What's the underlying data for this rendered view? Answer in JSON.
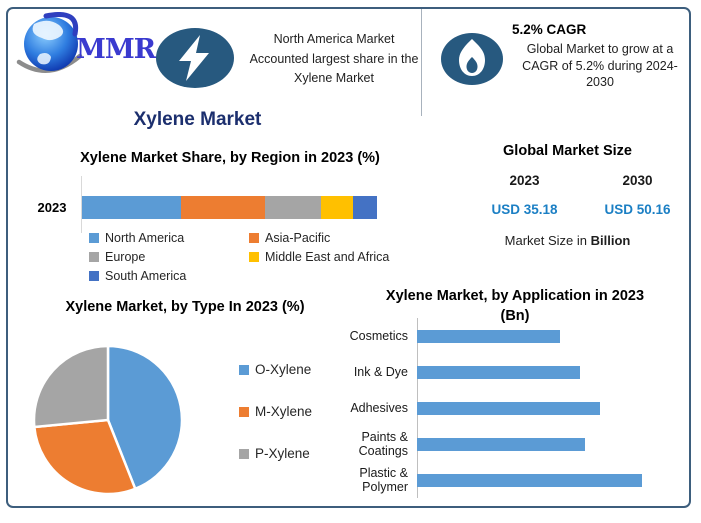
{
  "page": {
    "background": "#ffffff",
    "border_color": "#3d5e7d",
    "footer_bar_color": "#21395b"
  },
  "header": {
    "logo": {
      "text": "MMR",
      "color": "#3a3acf"
    },
    "left_callout": {
      "icon": "lightning-bolt-icon",
      "icon_bg": "#27597f",
      "lines": [
        "North America Market",
        "Accounted largest share in the",
        "Xylene Market"
      ]
    },
    "right_callout": {
      "icon": "flame-icon",
      "icon_bg": "#27597f",
      "title": "5.2% CAGR",
      "lines": [
        "Global Market to grow at a",
        "CAGR of 5.2% during 2024-",
        "2030"
      ]
    }
  },
  "main_title": {
    "text": "Xylene Market",
    "color": "#1c2f6e"
  },
  "market_size": {
    "title": "Global Market Size",
    "col_2023": {
      "year": "2023",
      "value": "USD 35.18"
    },
    "col_2030": {
      "year": "2030",
      "value": "USD 50.16"
    },
    "value_color": "#1b7fc4",
    "note_prefix": "Market Size in ",
    "note_bold": "Billion"
  },
  "chart_data": [
    {
      "id": "region",
      "type": "bar",
      "variant": "stacked-horizontal",
      "title": "Xylene Market Share, by Region in 2023 (%)",
      "categories": [
        "2023"
      ],
      "unit": "%",
      "xlim": [
        0,
        100
      ],
      "legend_position": "bottom",
      "series": [
        {
          "name": "North America",
          "value": 33.5,
          "color": "#5B9BD5"
        },
        {
          "name": "Asia-Pacific",
          "value": 28.5,
          "color": "#ED7D31"
        },
        {
          "name": "Europe",
          "value": 19,
          "color": "#A5A5A5"
        },
        {
          "name": "Middle East and Africa",
          "value": 11,
          "color": "#FFC000"
        },
        {
          "name": "South America",
          "value": 8,
          "color": "#4472C4"
        }
      ]
    },
    {
      "id": "type",
      "type": "pie",
      "title": "Xylene Market, by Type In 2023 (%)",
      "unit": "%",
      "legend_position": "right",
      "slices": [
        {
          "name": "O-Xylene",
          "value": 44,
          "color": "#5B9BD5"
        },
        {
          "name": "M-Xylene",
          "value": 29.5,
          "color": "#ED7D31"
        },
        {
          "name": "P-Xylene",
          "value": 26.5,
          "color": "#A5A5A5"
        }
      ]
    },
    {
      "id": "application",
      "type": "bar",
      "variant": "horizontal",
      "title": "Xylene Market, by Application in 2023 (Bn)",
      "title_lines": [
        "Xylene Market, by Application in 2023",
        "(Bn)"
      ],
      "unit": "Bn",
      "bar_color": "#5B9BD5",
      "xlim": [
        0,
        9.6
      ],
      "categories": [
        "Cosmetics",
        "Ink & Dye",
        "Adhesives",
        "Paints & Coatings",
        "Plastic & Polymer"
      ],
      "values": [
        5.7,
        6.5,
        7.3,
        6.7,
        9.0
      ]
    }
  ]
}
